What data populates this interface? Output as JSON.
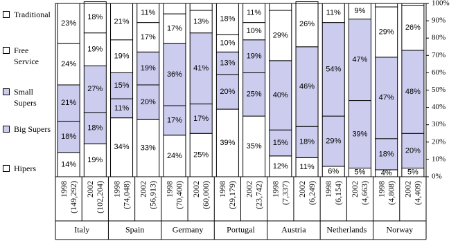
{
  "chart_data": {
    "type": "stacked-bar",
    "categories": [
      "1998",
      "2002",
      "1998",
      "2002",
      "1998",
      "2002",
      "1998",
      "2002",
      "1998",
      "2002",
      "1998",
      "2002",
      "1998",
      "2002"
    ],
    "category_counts": [
      "(149,292)",
      "(102,204)",
      "(74,048)",
      "(56,913)",
      "(70,400)",
      "(60,000)",
      "(29,179)",
      "(23,742)",
      "(7,337)",
      "(6,249)",
      "(6,154)",
      "(4,663)",
      "(4,808)",
      "(4,409)"
    ],
    "groups": [
      "Italy",
      "Spain",
      "Germany",
      "Portugal",
      "Austria",
      "Netherlands",
      "Norway"
    ],
    "series": [
      {
        "name": "Hipers",
        "color": "#ffffff",
        "values": [
          14,
          19,
          34,
          33,
          24,
          25,
          39,
          35,
          12,
          11,
          6,
          5,
          4,
          5
        ],
        "value_labels": [
          "14%",
          "19%",
          "34%",
          "33%",
          "24%",
          "25%",
          "39%",
          "35%",
          "12%",
          "11%",
          "6%",
          "5%",
          "4%",
          "5%"
        ]
      },
      {
        "name": "Big Supers",
        "color": "#ccccee",
        "values": [
          18,
          18,
          11,
          20,
          17,
          17,
          20,
          25,
          15,
          18,
          29,
          39,
          18,
          20
        ],
        "value_labels": [
          "18%",
          "18%",
          "11%",
          "20%",
          "17%",
          "17%",
          "20%",
          "25%",
          "15%",
          "18%",
          "29%",
          "39%",
          "18%",
          "20%"
        ]
      },
      {
        "name": "Small Supers",
        "color": "#ccccee",
        "values": [
          21,
          27,
          15,
          19,
          36,
          41,
          13,
          19,
          40,
          46,
          54,
          47,
          47,
          48
        ],
        "value_labels": [
          "21%",
          "27%",
          "15%",
          "19%",
          "36%",
          "41%",
          "13%",
          "19%",
          "40%",
          "46%",
          "54%",
          "47%",
          "47%",
          "48%"
        ]
      },
      {
        "name": "Free Service",
        "color": "#ffffff",
        "values": [
          24,
          19,
          19,
          17,
          17,
          13,
          10,
          10,
          29,
          26,
          11,
          9,
          29,
          26
        ],
        "value_labels": [
          "24%",
          "19%",
          "19%",
          "17%",
          "17%",
          "13%",
          "10%",
          "10%",
          "29%",
          "26%",
          "11%",
          "9%",
          "29%",
          "26%"
        ]
      },
      {
        "name": "Traditional",
        "color": "#ffffff",
        "values": [
          23,
          18,
          21,
          11,
          6,
          4,
          18,
          11,
          4,
          0,
          0,
          0,
          2,
          1
        ],
        "value_labels": [
          "23%",
          "18%",
          "21%",
          "11%",
          null,
          null,
          "18%",
          "11%",
          null,
          null,
          null,
          null,
          null,
          null
        ]
      }
    ],
    "ylim": [
      0,
      100
    ],
    "yticks": [
      {
        "value": 0,
        "label": "0%"
      },
      {
        "value": 10,
        "label": "10%"
      },
      {
        "value": 20,
        "label": "20%"
      },
      {
        "value": 30,
        "label": "30%"
      },
      {
        "value": 40,
        "label": "40%"
      },
      {
        "value": 50,
        "label": "50%"
      },
      {
        "value": 60,
        "label": "60%"
      },
      {
        "value": 70,
        "label": "70%"
      },
      {
        "value": 80,
        "label": "80%"
      },
      {
        "value": 90,
        "label": "90%"
      },
      {
        "value": 100,
        "label": "100%"
      }
    ]
  }
}
